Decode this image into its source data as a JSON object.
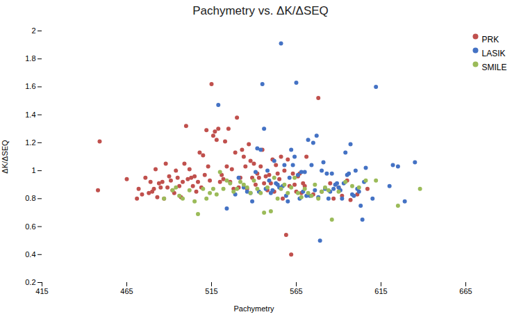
{
  "chart_data": {
    "type": "scatter",
    "title": "Pachymetry vs. ΔK/ΔSEQ",
    "x_label": "Pachymetry",
    "y_label": "ΔK/ΔSEQ",
    "xlim": [
      415,
      665
    ],
    "ylim": [
      0.2,
      2.0
    ],
    "xticks": [
      415,
      465,
      515,
      565,
      615,
      665
    ],
    "yticks": [
      0.2,
      0.4,
      0.6,
      0.8,
      1,
      1.2,
      1.4,
      1.6,
      1.8,
      2
    ],
    "grid": false,
    "legend": "upper right",
    "series": [
      {
        "name": "PRK",
        "color": "#C0504D",
        "x": [
          448,
          449,
          465,
          471,
          472,
          474,
          476,
          478,
          479,
          480,
          481,
          482,
          483,
          484,
          485,
          486,
          487,
          488,
          489,
          490,
          491,
          492,
          493,
          494,
          495,
          496,
          497,
          498,
          499,
          500,
          501,
          502,
          503,
          504,
          505,
          506,
          507,
          508,
          509,
          510,
          511,
          512,
          513,
          514,
          515,
          516,
          517,
          518,
          519,
          520,
          521,
          522,
          523,
          524,
          525,
          526,
          527,
          528,
          529,
          530,
          531,
          532,
          533,
          534,
          535,
          536,
          537,
          538,
          539,
          540,
          541,
          542,
          543,
          544,
          545,
          546,
          547,
          548,
          549,
          550,
          551,
          552,
          553,
          554,
          555,
          556,
          557,
          558,
          559,
          560,
          561,
          562,
          563,
          564,
          565,
          566,
          567,
          568,
          569,
          570,
          571,
          575,
          578,
          580,
          585,
          587,
          590,
          592,
          595,
          597,
          601,
          607
        ],
        "values": [
          0.86,
          1.21,
          0.94,
          0.8,
          0.87,
          0.83,
          0.95,
          0.84,
          0.92,
          0.85,
          0.87,
          1.01,
          0.81,
          0.91,
          0.88,
          0.92,
          0.8,
          1.05,
          0.88,
          0.96,
          0.93,
          0.86,
          0.84,
          1.0,
          0.95,
          0.89,
          0.81,
          0.92,
          1.05,
          1.32,
          0.94,
          1.01,
          0.95,
          0.89,
          0.96,
          0.85,
          0.92,
          1.13,
          0.88,
          1.11,
          0.97,
          1.29,
          1.03,
          0.93,
          1.62,
          1.25,
          1.28,
          1.22,
          1.3,
          0.92,
          0.97,
          0.94,
          1.21,
          1.03,
          1.3,
          0.92,
          1.01,
          0.87,
          1.13,
          1.38,
          0.88,
          0.95,
          1.15,
          1.1,
          1.03,
          0.87,
          1.19,
          1.07,
          0.95,
          1.05,
          0.9,
          0.98,
          0.95,
          1.03,
          1.15,
          0.91,
          0.96,
          0.86,
          0.97,
          0.91,
          1.08,
          0.85,
          1.04,
          0.98,
          0.94,
          1.1,
          0.8,
          1.0,
          0.54,
          1.08,
          0.89,
          0.4,
          0.98,
          0.9,
          0.85,
          0.96,
          0.98,
          0.84,
          0.91,
          0.89,
          1.1,
          0.83,
          1.52,
          0.85,
          0.91,
          0.8,
          0.88,
          0.82,
          0.93,
          0.79,
          0.83,
          0.87
        ]
      },
      {
        "name": "LASIK",
        "color": "#4472C4",
        "x": [
          519,
          524,
          529,
          531,
          534,
          536,
          538,
          539,
          541,
          542,
          543,
          544,
          545,
          546,
          547,
          548,
          549,
          550,
          551,
          552,
          553,
          554,
          555,
          556,
          557,
          558,
          559,
          560,
          561,
          562,
          563,
          564,
          565,
          566,
          567,
          568,
          569,
          570,
          571,
          572,
          573,
          574,
          575,
          576,
          577,
          578,
          579,
          580,
          581,
          582,
          583,
          584,
          585,
          586,
          587,
          588,
          589,
          590,
          591,
          592,
          593,
          594,
          595,
          596,
          597,
          598,
          599,
          600,
          601,
          602,
          603,
          604,
          605,
          606,
          610,
          612,
          620,
          622,
          625,
          629,
          635
        ],
        "values": [
          1.47,
          0.73,
          0.83,
          0.95,
          0.88,
          0.85,
          0.84,
          0.78,
          0.99,
          1.16,
          0.85,
          1.15,
          1.62,
          1.3,
          0.87,
          1.0,
          0.93,
          0.84,
          0.86,
          1.07,
          0.91,
          0.9,
          0.88,
          1.91,
          0.89,
          1.04,
          0.82,
          0.78,
          0.95,
          1.15,
          1.04,
          1.1,
          1.63,
          0.97,
          0.8,
          0.99,
          0.85,
          0.99,
          0.82,
          1.22,
          0.82,
          1.04,
          1.2,
          0.86,
          1.25,
          0.81,
          0.5,
          1.0,
          1.06,
          0.87,
          0.98,
          0.8,
          0.85,
          0.98,
          0.87,
          0.9,
          0.91,
          0.88,
          0.86,
          0.8,
          0.91,
          1.13,
          0.97,
          0.98,
          1.19,
          0.83,
          0.82,
          1.0,
          0.87,
          0.85,
          0.75,
          0.65,
          0.92,
          1.02,
          0.8,
          1.6,
          0.89,
          1.04,
          1.03,
          0.78,
          1.06
        ]
      },
      {
        "name": "SMILE",
        "color": "#9BBB59",
        "x": [
          487,
          492,
          494,
          496,
          498,
          502,
          505,
          507,
          510,
          512,
          514,
          516,
          518,
          520,
          522,
          524,
          526,
          528,
          530,
          532,
          534,
          536,
          538,
          540,
          542,
          544,
          546,
          548,
          550,
          552,
          554,
          556,
          558,
          560,
          562,
          564,
          566,
          568,
          570,
          572,
          574,
          576,
          578,
          580,
          582,
          584,
          586,
          590,
          594,
          598,
          602,
          606,
          612,
          625,
          638
        ],
        "values": [
          0.8,
          0.86,
          0.88,
          0.82,
          0.8,
          0.86,
          0.78,
          0.69,
          0.87,
          0.8,
          0.84,
          0.87,
          0.83,
          0.99,
          0.87,
          0.93,
          0.91,
          0.85,
          0.87,
          0.92,
          0.9,
          0.88,
          0.84,
          0.93,
          0.87,
          0.84,
          0.7,
          0.88,
          0.71,
          0.95,
          0.8,
          0.87,
          0.9,
          0.84,
          0.88,
          0.95,
          0.84,
          0.81,
          0.87,
          0.84,
          0.82,
          0.9,
          0.8,
          0.85,
          0.88,
          0.86,
          0.65,
          0.85,
          0.92,
          0.89,
          0.88,
          0.93,
          0.93,
          0.75,
          0.87
        ]
      }
    ]
  }
}
